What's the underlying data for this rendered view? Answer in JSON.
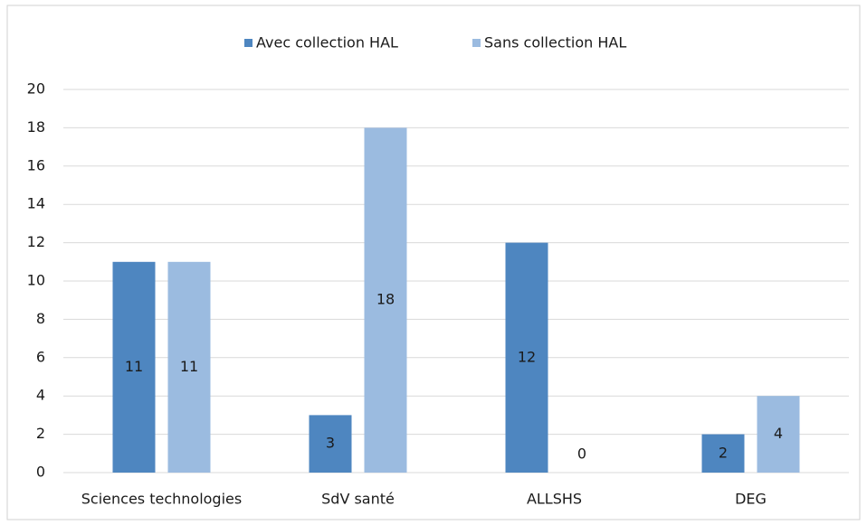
{
  "chart_data": {
    "type": "bar",
    "categories": [
      "Sciences technologies",
      "SdV santé",
      "ALLSHS",
      "DEG"
    ],
    "series": [
      {
        "name": "Avec collection HAL",
        "color": "#4e86c0",
        "values": [
          11,
          3,
          12,
          2
        ]
      },
      {
        "name": "Sans collection HAL",
        "color": "#9bbbe0",
        "values": [
          11,
          18,
          0,
          4
        ]
      }
    ],
    "ylim": [
      0,
      20
    ],
    "yticks": [
      0,
      2,
      4,
      6,
      8,
      10,
      12,
      14,
      16,
      18,
      20
    ],
    "grid": true,
    "legend": "top"
  }
}
